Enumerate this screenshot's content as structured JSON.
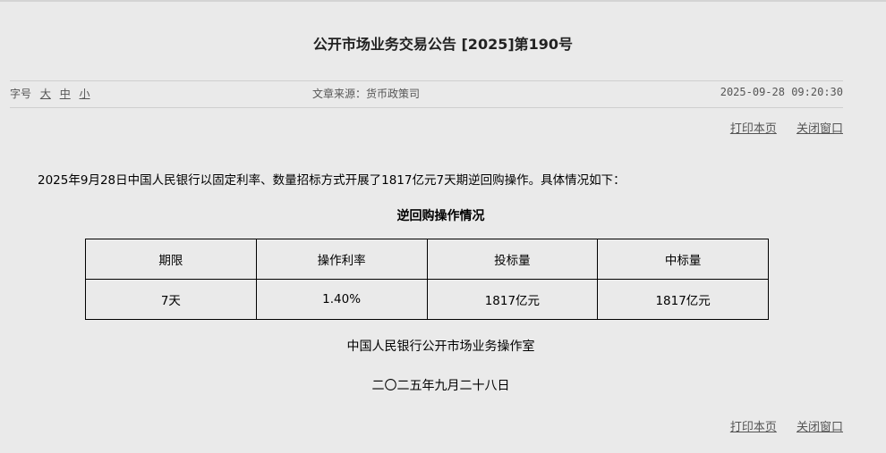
{
  "title": "公开市场业务交易公告 [2025]第190号",
  "meta": {
    "font_label": "字号",
    "font_sizes": [
      "大",
      "中",
      "小"
    ],
    "source": "文章来源：货币政策司",
    "datetime": "2025-09-28 09:20:30"
  },
  "links": {
    "print": "打印本页",
    "close": "关闭窗口"
  },
  "intro": "2025年9月28日中国人民银行以固定利率、数量招标方式开展了1817亿元7天期逆回购操作。具体情况如下：",
  "table": {
    "caption": "逆回购操作情况",
    "headers": [
      "期限",
      "操作利率",
      "投标量",
      "中标量"
    ],
    "rows": [
      [
        "7天",
        "1.40%",
        "1817亿元",
        "1817亿元"
      ]
    ]
  },
  "signature": {
    "org": "中国人民银行公开市场业务操作室",
    "date": "二〇二五年九月二十八日"
  }
}
